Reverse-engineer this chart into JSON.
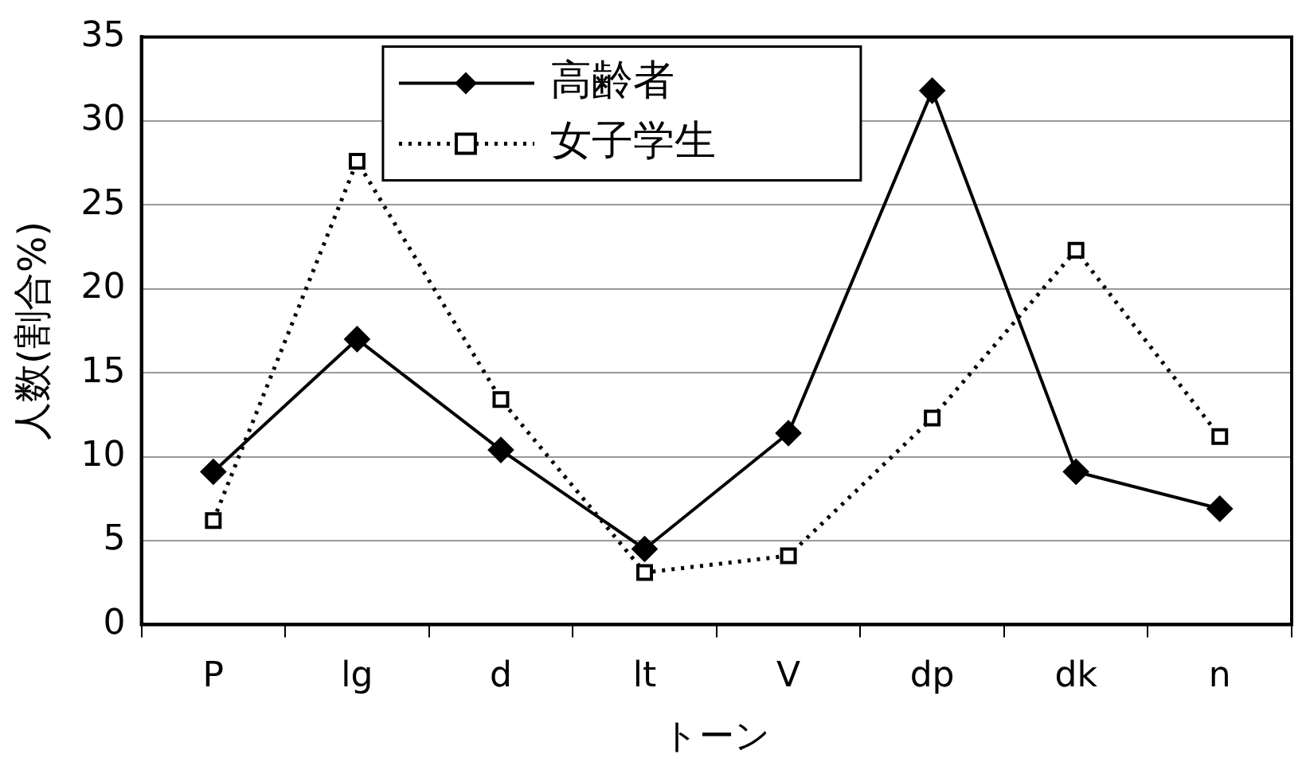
{
  "chart_data": {
    "type": "line",
    "xlabel": "トーン",
    "ylabel": "人数(割合%)",
    "categories": [
      "P",
      "lg",
      "d",
      "lt",
      "V",
      "dp",
      "dk",
      "n"
    ],
    "series": [
      {
        "name": "高齢者",
        "color": "#000000",
        "marker": "diamond",
        "line_style": "solid",
        "values": [
          9.1,
          17.0,
          10.4,
          4.5,
          11.4,
          31.8,
          9.1,
          6.9
        ]
      },
      {
        "name": "女子学生",
        "color": "#000000",
        "marker": "square",
        "line_style": "dotted",
        "values": [
          6.2,
          27.6,
          13.4,
          3.1,
          4.1,
          12.3,
          22.3,
          11.2
        ]
      }
    ],
    "ylim": [
      0,
      35
    ],
    "yticks": [
      0,
      5,
      10,
      15,
      20,
      25,
      30,
      35
    ],
    "grid": "y",
    "legend": "top"
  }
}
